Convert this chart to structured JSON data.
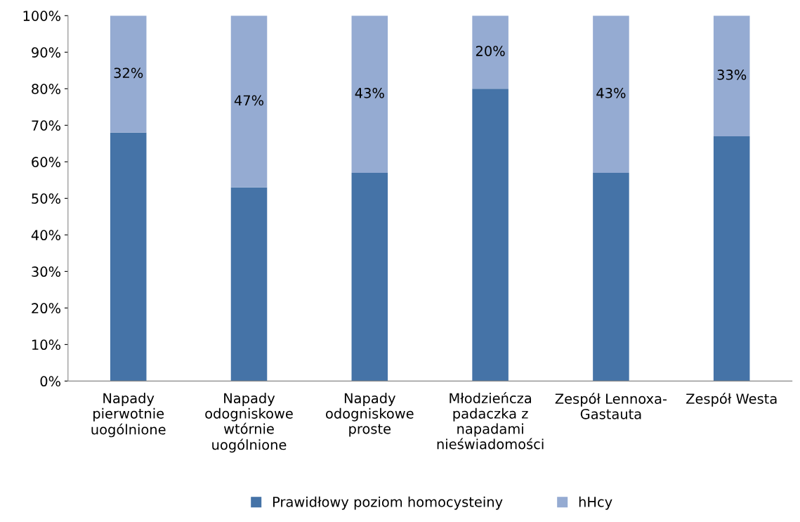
{
  "chart_data": {
    "type": "bar",
    "stacked": true,
    "categories": [
      "Napady\npierwotnie\nuogólnione",
      "Napady\nodogniskowe\nwtórnie\nuogólnione",
      "Napady\nodogniskowe\nproste",
      "Młodzieńcza\npadaczka z\nnapadami\nnieświadomości",
      "Zespół Lennoxa-\nGastauta",
      "Zespół Westa"
    ],
    "series": [
      {
        "name": "Prawidłowy poziom homocysteiny",
        "color": "#4573a7",
        "values": [
          68,
          53,
          57,
          80,
          57,
          67
        ]
      },
      {
        "name": "hHcy",
        "color": "#95abd2",
        "values": [
          32,
          47,
          43,
          20,
          43,
          33
        ],
        "value_labels": [
          "32%",
          "47%",
          "43%",
          "20%",
          "43%",
          "33%"
        ]
      }
    ],
    "ylim": [
      0,
      100
    ],
    "yticks": [
      {
        "value": 0,
        "label": "0%"
      },
      {
        "value": 10,
        "label": "10%"
      },
      {
        "value": 20,
        "label": "20%"
      },
      {
        "value": 30,
        "label": "30%"
      },
      {
        "value": 40,
        "label": "40%"
      },
      {
        "value": 50,
        "label": "50%"
      },
      {
        "value": 60,
        "label": "60%"
      },
      {
        "value": 70,
        "label": "70%"
      },
      {
        "value": 80,
        "label": "80%"
      },
      {
        "value": 90,
        "label": "90%"
      },
      {
        "value": 100,
        "label": "100%"
      }
    ],
    "grid": false,
    "legend": "bottom"
  }
}
